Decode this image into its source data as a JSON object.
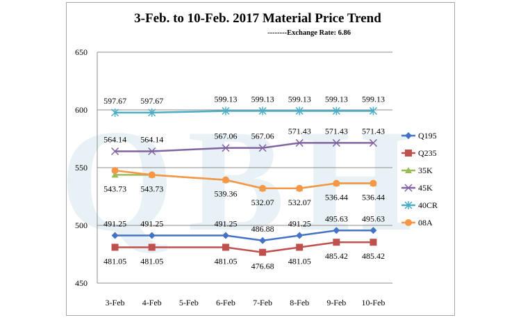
{
  "chart_data": {
    "type": "line",
    "title": "3-Feb. to 10-Feb. 2017 Material Price Trend",
    "subtitle": "--------Exchange Rate: 6.86",
    "watermark": "QBH",
    "xlabel": "",
    "ylabel": "",
    "ylim": [
      450,
      650
    ],
    "yticks": [
      450,
      500,
      550,
      600,
      650
    ],
    "grid": true,
    "legend_position": "right",
    "categories": [
      "3-Feb",
      "4-Feb",
      "5-Feb",
      "6-Feb",
      "7-Feb",
      "8-Feb",
      "9-Feb",
      "10-Feb"
    ],
    "series": [
      {
        "name": "Q195",
        "color": "#4472c4",
        "marker": "diamond",
        "label_pos": "above",
        "show_labels": true,
        "values": [
          491.25,
          491.25,
          null,
          491.25,
          486.88,
          491.25,
          495.63,
          495.63
        ]
      },
      {
        "name": "Q235",
        "color": "#c0504d",
        "marker": "square",
        "label_pos": "below",
        "show_labels": true,
        "values": [
          481.05,
          481.05,
          null,
          481.05,
          476.68,
          481.05,
          485.42,
          485.42
        ]
      },
      {
        "name": "35K",
        "color": "#9bbb59",
        "marker": "triangle",
        "label_pos": "below",
        "show_labels": true,
        "values": [
          543.73,
          543.73,
          null,
          539.36,
          532.07,
          532.07,
          536.44,
          536.44
        ]
      },
      {
        "name": "45K",
        "color": "#8064a2",
        "marker": "x",
        "label_pos": "above",
        "show_labels": true,
        "values": [
          564.14,
          564.14,
          null,
          567.06,
          567.06,
          571.43,
          571.43,
          571.43
        ]
      },
      {
        "name": "40CR",
        "color": "#4bacc6",
        "marker": "star",
        "label_pos": "above",
        "show_labels": true,
        "values": [
          597.67,
          597.67,
          null,
          599.13,
          599.13,
          599.13,
          599.13,
          599.13
        ]
      },
      {
        "name": "08A",
        "color": "#f79646",
        "marker": "circle",
        "label_pos": "none",
        "show_labels": false,
        "values": [
          547.5,
          543.73,
          null,
          539.36,
          532.07,
          532.07,
          536.44,
          536.44
        ]
      }
    ]
  }
}
